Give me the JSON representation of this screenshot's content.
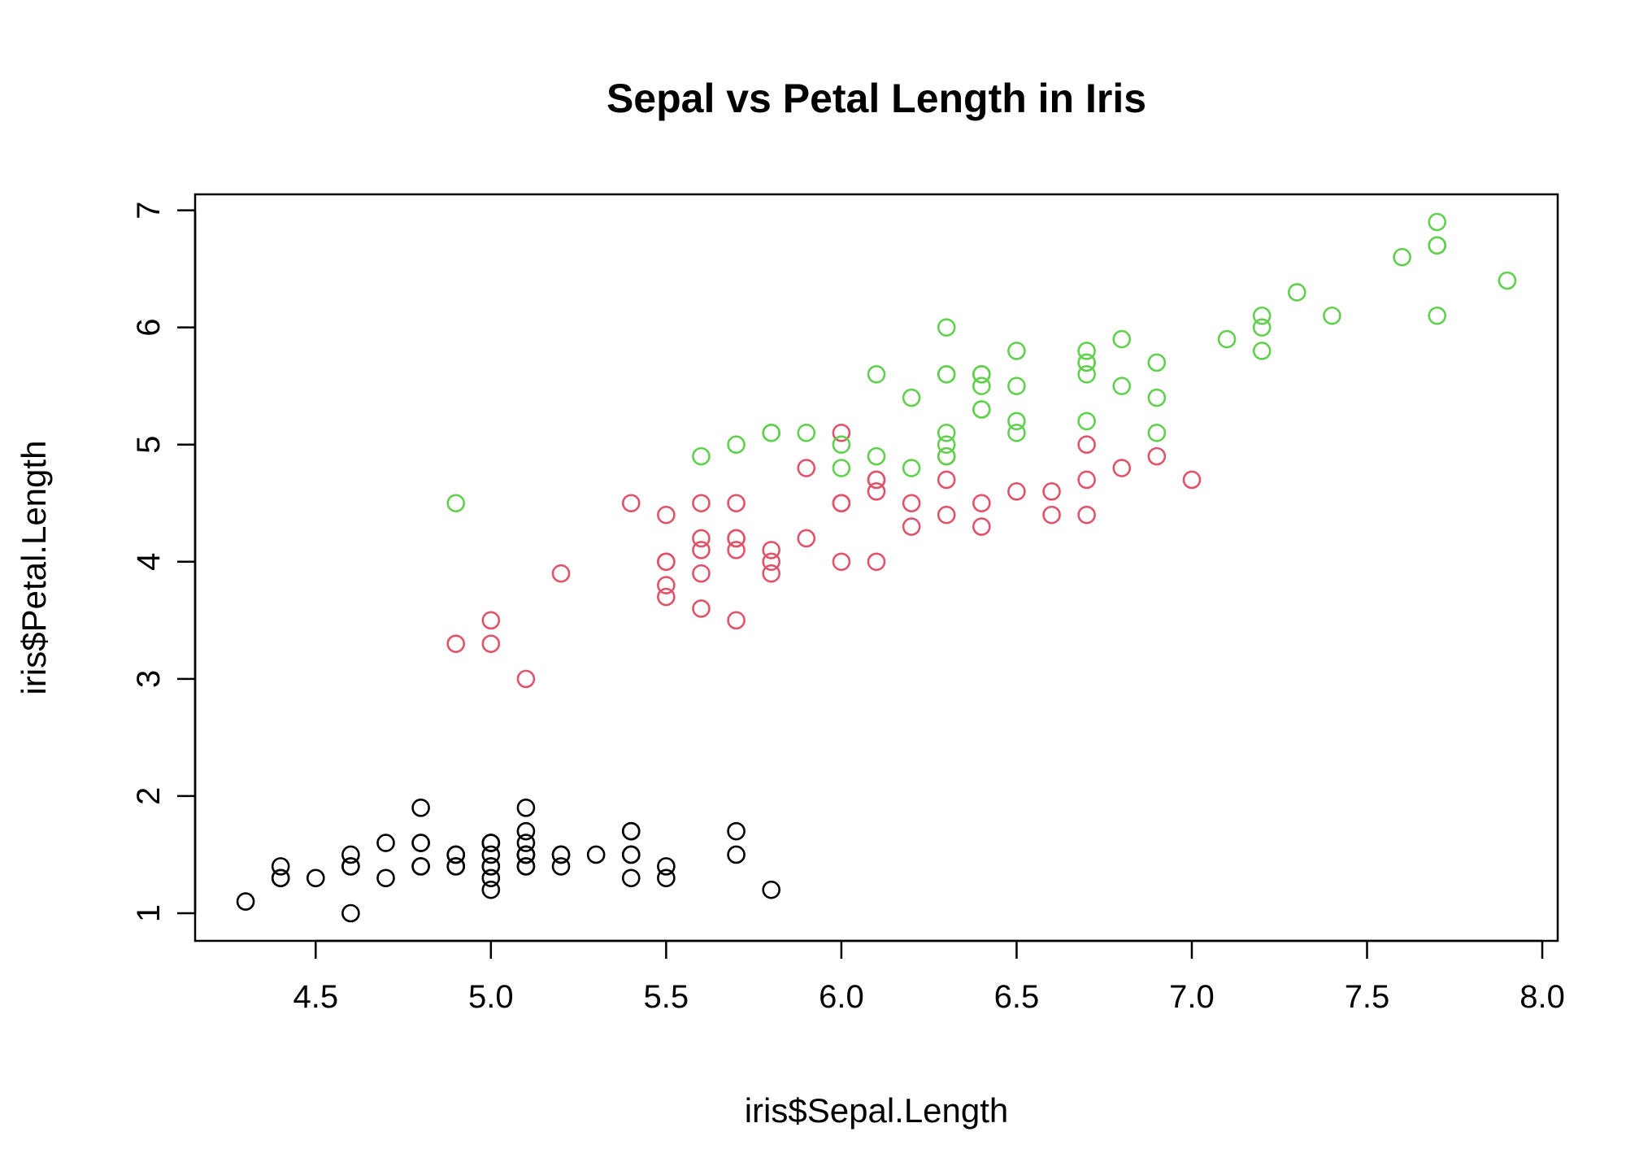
{
  "chart_data": {
    "type": "scatter",
    "title": "Sepal vs Petal Length in Iris",
    "xlabel": "iris$Sepal.Length",
    "ylabel": "iris$Petal.Length",
    "xlim": [
      4.3,
      7.9
    ],
    "ylim": [
      1,
      6.9
    ],
    "xticks": [
      4.5,
      5.0,
      5.5,
      6.0,
      6.5,
      7.0,
      7.5,
      8.0
    ],
    "xtick_labels": [
      "4.5",
      "5.0",
      "5.5",
      "6.0",
      "6.5",
      "7.0",
      "7.5",
      "8.0"
    ],
    "yticks": [
      1,
      2,
      3,
      4,
      5,
      6,
      7
    ],
    "ytick_labels": [
      "1",
      "2",
      "3",
      "4",
      "5",
      "6",
      "7"
    ],
    "grid": false,
    "legend": "none",
    "marker": "open-circle",
    "series": [
      {
        "color": "#000000",
        "x": [
          5.1,
          4.9,
          4.7,
          4.6,
          5.0,
          5.4,
          4.6,
          5.0,
          4.4,
          4.9,
          5.4,
          4.8,
          4.8,
          4.3,
          5.8,
          5.7,
          5.4,
          5.1,
          5.7,
          5.1,
          5.4,
          5.1,
          4.6,
          5.1,
          4.8,
          5.0,
          5.0,
          5.2,
          5.2,
          4.7,
          4.8,
          5.4,
          5.2,
          5.5,
          4.9,
          5.0,
          5.5,
          4.9,
          4.4,
          5.1,
          5.0,
          4.5,
          4.4,
          5.0,
          5.1,
          4.8,
          5.1,
          4.6,
          5.3,
          5.0
        ],
        "y": [
          1.4,
          1.4,
          1.3,
          1.5,
          1.4,
          1.7,
          1.4,
          1.5,
          1.4,
          1.5,
          1.5,
          1.6,
          1.4,
          1.1,
          1.2,
          1.5,
          1.3,
          1.4,
          1.7,
          1.5,
          1.7,
          1.5,
          1.0,
          1.7,
          1.9,
          1.6,
          1.6,
          1.5,
          1.4,
          1.6,
          1.6,
          1.5,
          1.5,
          1.4,
          1.5,
          1.2,
          1.3,
          1.4,
          1.3,
          1.5,
          1.3,
          1.3,
          1.3,
          1.6,
          1.9,
          1.4,
          1.6,
          1.4,
          1.5,
          1.4
        ]
      },
      {
        "color": "#DF536B",
        "x": [
          7.0,
          6.4,
          6.9,
          5.5,
          6.5,
          5.7,
          6.3,
          4.9,
          6.6,
          5.2,
          5.0,
          5.9,
          6.0,
          6.1,
          5.6,
          6.7,
          5.6,
          5.8,
          6.2,
          5.6,
          5.9,
          6.1,
          6.3,
          6.1,
          6.4,
          6.6,
          6.8,
          6.7,
          6.0,
          5.7,
          5.5,
          5.5,
          5.8,
          6.0,
          5.4,
          6.0,
          6.7,
          6.3,
          5.6,
          5.5,
          5.5,
          6.1,
          5.8,
          5.0,
          5.6,
          5.7,
          5.7,
          6.2,
          5.1,
          5.7
        ],
        "y": [
          4.7,
          4.5,
          4.9,
          4.0,
          4.6,
          4.5,
          4.7,
          3.3,
          4.6,
          3.9,
          3.5,
          4.2,
          4.0,
          4.7,
          3.6,
          4.4,
          4.5,
          4.1,
          4.5,
          3.9,
          4.8,
          4.0,
          4.9,
          4.7,
          4.3,
          4.4,
          4.8,
          5.0,
          4.5,
          3.5,
          3.8,
          3.7,
          3.9,
          5.1,
          4.5,
          4.5,
          4.7,
          4.4,
          4.1,
          4.0,
          4.4,
          4.6,
          4.0,
          3.3,
          4.2,
          4.2,
          4.2,
          4.3,
          3.0,
          4.1
        ]
      },
      {
        "color": "#61D04F",
        "x": [
          6.3,
          5.8,
          7.1,
          6.3,
          6.5,
          7.6,
          4.9,
          7.3,
          6.7,
          7.2,
          6.5,
          6.4,
          6.8,
          5.7,
          5.8,
          6.4,
          6.5,
          7.7,
          7.7,
          6.0,
          6.9,
          5.6,
          7.7,
          6.3,
          6.7,
          7.2,
          6.2,
          6.1,
          6.4,
          7.2,
          7.4,
          7.9,
          6.4,
          6.3,
          6.1,
          7.7,
          6.3,
          6.4,
          6.0,
          6.9,
          6.7,
          6.9,
          5.8,
          6.8,
          6.7,
          6.7,
          6.3,
          6.5,
          6.2,
          5.9
        ],
        "y": [
          6.0,
          5.1,
          5.9,
          5.6,
          5.8,
          6.6,
          4.5,
          6.3,
          5.8,
          6.1,
          5.1,
          5.3,
          5.5,
          5.0,
          5.1,
          5.3,
          5.5,
          6.7,
          6.9,
          5.0,
          5.7,
          4.9,
          6.7,
          4.9,
          5.7,
          6.0,
          4.8,
          4.9,
          5.6,
          5.8,
          6.1,
          6.4,
          5.6,
          5.1,
          5.6,
          6.1,
          5.6,
          5.5,
          4.8,
          5.4,
          5.6,
          5.1,
          5.1,
          5.9,
          5.7,
          5.2,
          5.0,
          5.2,
          5.4,
          5.1
        ]
      }
    ]
  }
}
